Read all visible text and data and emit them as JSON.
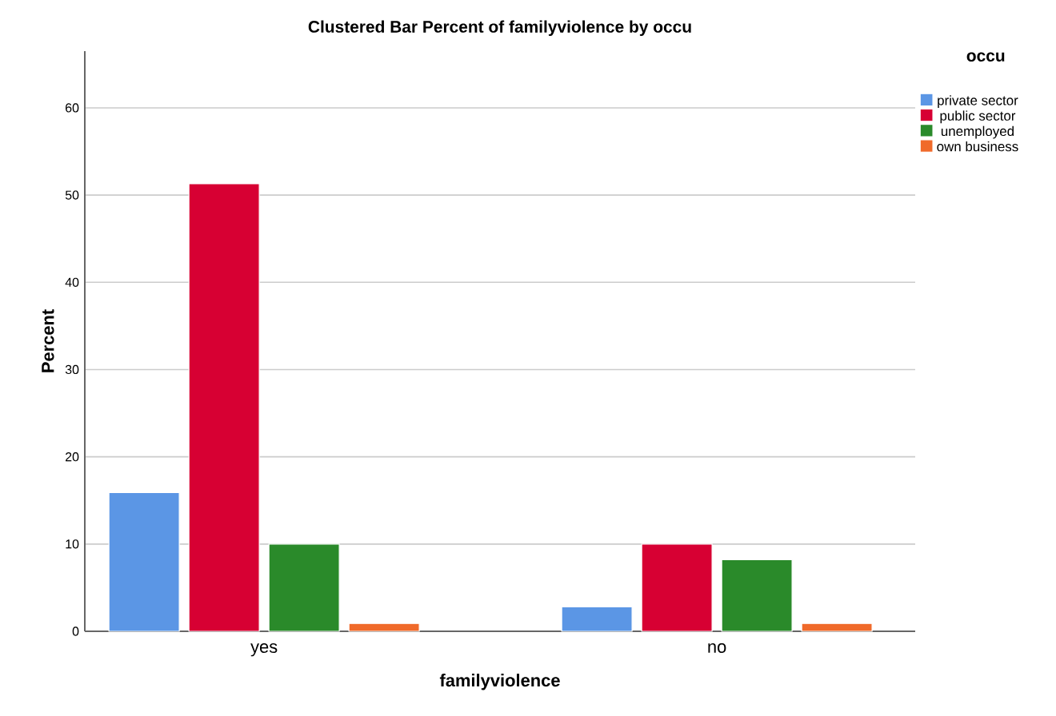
{
  "chart_data": {
    "type": "bar",
    "title": "Clustered Bar Percent of familyviolence by occu",
    "xlabel": "familyviolence",
    "ylabel": "Percent",
    "legend_title": "occu",
    "categories": [
      "yes",
      "no"
    ],
    "series": [
      {
        "name": "private sector",
        "color": "#5b96e5",
        "values": [
          15.9,
          2.8
        ]
      },
      {
        "name": "public sector",
        "color": "#d70033",
        "values": [
          51.3,
          10.0
        ]
      },
      {
        "name": "unemployed",
        "color": "#2a8a2a",
        "values": [
          10.0,
          8.2
        ]
      },
      {
        "name": "own business",
        "color": "#f06a2a",
        "values": [
          0.9,
          0.9
        ]
      }
    ],
    "ylim": [
      0,
      66.5
    ],
    "yticks": [
      0,
      10,
      20,
      30,
      40,
      50,
      60
    ],
    "grid": "y",
    "legend": "top right"
  }
}
